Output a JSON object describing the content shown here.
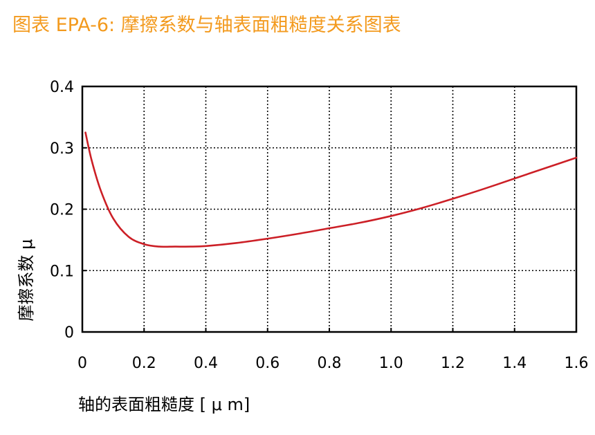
{
  "chart_data": {
    "type": "line",
    "title": "图表 EPA-6: 摩擦系数与轴表面粗糙度关系图表",
    "xlabel": "轴的表面粗糙度 [ μ m]",
    "ylabel": "摩擦系数 μ",
    "xlim": [
      0,
      1.6
    ],
    "ylim": [
      0,
      0.4
    ],
    "x_ticks": [
      "0",
      "0.2",
      "0.4",
      "0.6",
      "0.8",
      "1.0",
      "1.2",
      "1.4",
      "1.6"
    ],
    "y_ticks": [
      "0",
      "0.1",
      "0.2",
      "0.3",
      "0.4"
    ],
    "grid": true,
    "series": [
      {
        "color": "#cc1f26",
        "x": [
          0.01,
          0.03,
          0.06,
          0.1,
          0.15,
          0.2,
          0.25,
          0.3,
          0.35,
          0.4,
          0.5,
          0.6,
          0.7,
          0.8,
          0.9,
          1.0,
          1.1,
          1.2,
          1.3,
          1.4,
          1.5,
          1.6
        ],
        "y": [
          0.325,
          0.28,
          0.23,
          0.185,
          0.155,
          0.143,
          0.139,
          0.139,
          0.139,
          0.14,
          0.145,
          0.152,
          0.16,
          0.169,
          0.178,
          0.189,
          0.202,
          0.217,
          0.233,
          0.25,
          0.267,
          0.284
        ]
      }
    ]
  }
}
